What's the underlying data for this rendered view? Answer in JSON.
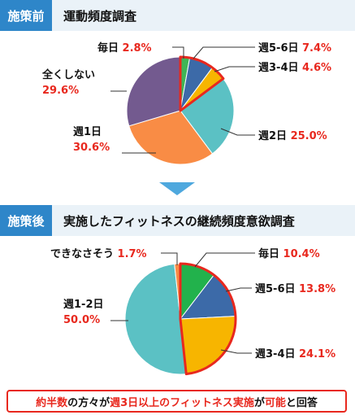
{
  "colors": {
    "header_tag_bg": "#2e86c9",
    "header_bg": "#eaf2f8",
    "highlight_red": "#e8281e",
    "arrow": "#4ea8de",
    "leader_line": "#333333"
  },
  "callout": {
    "p1": "約半数",
    "p2": "の方々が",
    "p3": "週3日以上のフィットネス実施",
    "p4": "が",
    "p5": "可能",
    "p6": "と回答"
  },
  "chart_data": [
    {
      "type": "pie",
      "tag": "施策前",
      "title": "運動頻度調査",
      "slices": [
        {
          "label": "毎日",
          "value": 2.8,
          "display": "2.8%",
          "color": "#3fb556"
        },
        {
          "label": "週5-6日",
          "value": 7.4,
          "display": "7.4%",
          "color": "#3c6aa8"
        },
        {
          "label": "週3-4日",
          "value": 4.6,
          "display": "4.6%",
          "color": "#f7b500"
        },
        {
          "label": "週2日",
          "value": 25.0,
          "display": "25.0%",
          "color": "#5bc1c4"
        },
        {
          "label": "週1日",
          "value": 30.6,
          "display": "30.6%",
          "color": "#f98c45"
        },
        {
          "label": "全くしない",
          "value": 29.6,
          "display": "29.6%",
          "color": "#735a8f"
        }
      ],
      "highlight": [
        "毎日",
        "週5-6日",
        "週3-4日"
      ]
    },
    {
      "type": "pie",
      "tag": "施策後",
      "title": "実施したフィットネスの継続頻度意欲調査",
      "slices": [
        {
          "label": "毎日",
          "value": 10.4,
          "display": "10.4%",
          "color": "#22b24c"
        },
        {
          "label": "週5-6日",
          "value": 13.8,
          "display": "13.8%",
          "color": "#3c6aa8"
        },
        {
          "label": "週3-4日",
          "value": 24.1,
          "display": "24.1%",
          "color": "#f7b500"
        },
        {
          "label": "週1-2日",
          "value": 50.0,
          "display": "50.0%",
          "color": "#5bc1c4"
        },
        {
          "label": "できなさそう",
          "value": 1.7,
          "display": "1.7%",
          "color": "#f98c45"
        }
      ],
      "highlight": [
        "毎日",
        "週5-6日",
        "週3-4日"
      ]
    }
  ]
}
